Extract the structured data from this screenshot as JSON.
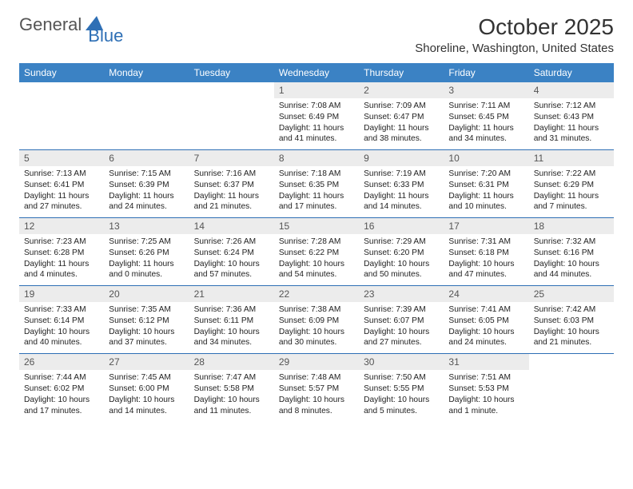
{
  "logo": {
    "text1": "General",
    "text2": "Blue"
  },
  "title": "October 2025",
  "location": "Shoreline, Washington, United States",
  "day_headers": [
    "Sunday",
    "Monday",
    "Tuesday",
    "Wednesday",
    "Thursday",
    "Friday",
    "Saturday"
  ],
  "colors": {
    "header_bg": "#3b82c4",
    "header_text": "#ffffff",
    "daynum_bg": "#ececec",
    "daynum_text": "#555555",
    "divider": "#2e6fb5",
    "logo_accent": "#2e6fb5"
  },
  "weeks": [
    [
      {
        "num": "",
        "sunrise": "",
        "sunset": "",
        "daylight": ""
      },
      {
        "num": "",
        "sunrise": "",
        "sunset": "",
        "daylight": ""
      },
      {
        "num": "",
        "sunrise": "",
        "sunset": "",
        "daylight": ""
      },
      {
        "num": "1",
        "sunrise": "Sunrise: 7:08 AM",
        "sunset": "Sunset: 6:49 PM",
        "daylight": "Daylight: 11 hours and 41 minutes."
      },
      {
        "num": "2",
        "sunrise": "Sunrise: 7:09 AM",
        "sunset": "Sunset: 6:47 PM",
        "daylight": "Daylight: 11 hours and 38 minutes."
      },
      {
        "num": "3",
        "sunrise": "Sunrise: 7:11 AM",
        "sunset": "Sunset: 6:45 PM",
        "daylight": "Daylight: 11 hours and 34 minutes."
      },
      {
        "num": "4",
        "sunrise": "Sunrise: 7:12 AM",
        "sunset": "Sunset: 6:43 PM",
        "daylight": "Daylight: 11 hours and 31 minutes."
      }
    ],
    [
      {
        "num": "5",
        "sunrise": "Sunrise: 7:13 AM",
        "sunset": "Sunset: 6:41 PM",
        "daylight": "Daylight: 11 hours and 27 minutes."
      },
      {
        "num": "6",
        "sunrise": "Sunrise: 7:15 AM",
        "sunset": "Sunset: 6:39 PM",
        "daylight": "Daylight: 11 hours and 24 minutes."
      },
      {
        "num": "7",
        "sunrise": "Sunrise: 7:16 AM",
        "sunset": "Sunset: 6:37 PM",
        "daylight": "Daylight: 11 hours and 21 minutes."
      },
      {
        "num": "8",
        "sunrise": "Sunrise: 7:18 AM",
        "sunset": "Sunset: 6:35 PM",
        "daylight": "Daylight: 11 hours and 17 minutes."
      },
      {
        "num": "9",
        "sunrise": "Sunrise: 7:19 AM",
        "sunset": "Sunset: 6:33 PM",
        "daylight": "Daylight: 11 hours and 14 minutes."
      },
      {
        "num": "10",
        "sunrise": "Sunrise: 7:20 AM",
        "sunset": "Sunset: 6:31 PM",
        "daylight": "Daylight: 11 hours and 10 minutes."
      },
      {
        "num": "11",
        "sunrise": "Sunrise: 7:22 AM",
        "sunset": "Sunset: 6:29 PM",
        "daylight": "Daylight: 11 hours and 7 minutes."
      }
    ],
    [
      {
        "num": "12",
        "sunrise": "Sunrise: 7:23 AM",
        "sunset": "Sunset: 6:28 PM",
        "daylight": "Daylight: 11 hours and 4 minutes."
      },
      {
        "num": "13",
        "sunrise": "Sunrise: 7:25 AM",
        "sunset": "Sunset: 6:26 PM",
        "daylight": "Daylight: 11 hours and 0 minutes."
      },
      {
        "num": "14",
        "sunrise": "Sunrise: 7:26 AM",
        "sunset": "Sunset: 6:24 PM",
        "daylight": "Daylight: 10 hours and 57 minutes."
      },
      {
        "num": "15",
        "sunrise": "Sunrise: 7:28 AM",
        "sunset": "Sunset: 6:22 PM",
        "daylight": "Daylight: 10 hours and 54 minutes."
      },
      {
        "num": "16",
        "sunrise": "Sunrise: 7:29 AM",
        "sunset": "Sunset: 6:20 PM",
        "daylight": "Daylight: 10 hours and 50 minutes."
      },
      {
        "num": "17",
        "sunrise": "Sunrise: 7:31 AM",
        "sunset": "Sunset: 6:18 PM",
        "daylight": "Daylight: 10 hours and 47 minutes."
      },
      {
        "num": "18",
        "sunrise": "Sunrise: 7:32 AM",
        "sunset": "Sunset: 6:16 PM",
        "daylight": "Daylight: 10 hours and 44 minutes."
      }
    ],
    [
      {
        "num": "19",
        "sunrise": "Sunrise: 7:33 AM",
        "sunset": "Sunset: 6:14 PM",
        "daylight": "Daylight: 10 hours and 40 minutes."
      },
      {
        "num": "20",
        "sunrise": "Sunrise: 7:35 AM",
        "sunset": "Sunset: 6:12 PM",
        "daylight": "Daylight: 10 hours and 37 minutes."
      },
      {
        "num": "21",
        "sunrise": "Sunrise: 7:36 AM",
        "sunset": "Sunset: 6:11 PM",
        "daylight": "Daylight: 10 hours and 34 minutes."
      },
      {
        "num": "22",
        "sunrise": "Sunrise: 7:38 AM",
        "sunset": "Sunset: 6:09 PM",
        "daylight": "Daylight: 10 hours and 30 minutes."
      },
      {
        "num": "23",
        "sunrise": "Sunrise: 7:39 AM",
        "sunset": "Sunset: 6:07 PM",
        "daylight": "Daylight: 10 hours and 27 minutes."
      },
      {
        "num": "24",
        "sunrise": "Sunrise: 7:41 AM",
        "sunset": "Sunset: 6:05 PM",
        "daylight": "Daylight: 10 hours and 24 minutes."
      },
      {
        "num": "25",
        "sunrise": "Sunrise: 7:42 AM",
        "sunset": "Sunset: 6:03 PM",
        "daylight": "Daylight: 10 hours and 21 minutes."
      }
    ],
    [
      {
        "num": "26",
        "sunrise": "Sunrise: 7:44 AM",
        "sunset": "Sunset: 6:02 PM",
        "daylight": "Daylight: 10 hours and 17 minutes."
      },
      {
        "num": "27",
        "sunrise": "Sunrise: 7:45 AM",
        "sunset": "Sunset: 6:00 PM",
        "daylight": "Daylight: 10 hours and 14 minutes."
      },
      {
        "num": "28",
        "sunrise": "Sunrise: 7:47 AM",
        "sunset": "Sunset: 5:58 PM",
        "daylight": "Daylight: 10 hours and 11 minutes."
      },
      {
        "num": "29",
        "sunrise": "Sunrise: 7:48 AM",
        "sunset": "Sunset: 5:57 PM",
        "daylight": "Daylight: 10 hours and 8 minutes."
      },
      {
        "num": "30",
        "sunrise": "Sunrise: 7:50 AM",
        "sunset": "Sunset: 5:55 PM",
        "daylight": "Daylight: 10 hours and 5 minutes."
      },
      {
        "num": "31",
        "sunrise": "Sunrise: 7:51 AM",
        "sunset": "Sunset: 5:53 PM",
        "daylight": "Daylight: 10 hours and 1 minute."
      },
      {
        "num": "",
        "sunrise": "",
        "sunset": "",
        "daylight": ""
      }
    ]
  ]
}
